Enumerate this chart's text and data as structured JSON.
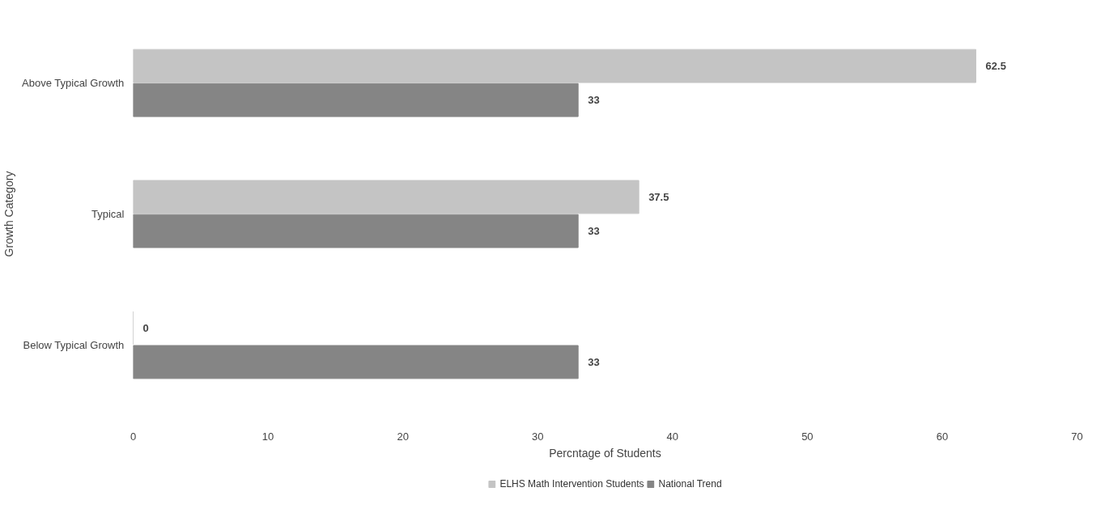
{
  "chart_data": {
    "type": "bar",
    "orientation": "horizontal",
    "xlabel": "Percntage of Students",
    "ylabel": "Growth Category",
    "categories": [
      "Above Typical Growth",
      "Typical",
      "Below Typical Growth"
    ],
    "series": [
      {
        "name": "ELHS Math Intervention Students",
        "color": "#c4c4c4",
        "values": [
          62.5,
          37.5,
          0
        ]
      },
      {
        "name": "National Trend",
        "color": "#858585",
        "values": [
          33,
          33,
          33
        ]
      }
    ],
    "xlim": [
      0,
      70
    ],
    "xticks": [
      0,
      10,
      20,
      30,
      40,
      50,
      60,
      70
    ],
    "data_labels": true,
    "legend": "bottom",
    "grid": false
  }
}
